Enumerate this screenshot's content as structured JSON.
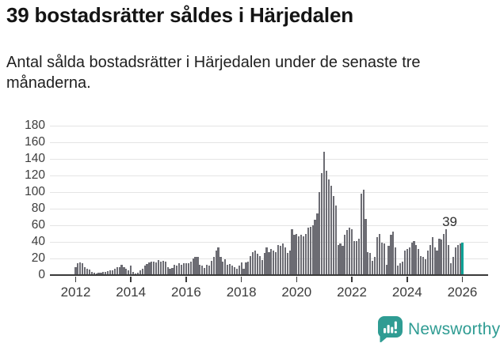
{
  "header": {
    "title": "39 bostadsrätter såldes i Härjedalen",
    "subtitle": "Antal sålda bostadsrätter i Härjedalen under de senaste tre månaderna."
  },
  "chart_data": {
    "type": "bar",
    "title": "39 bostadsrätter såldes i Härjedalen",
    "subtitle": "Antal sålda bostadsrätter i Härjedalen under de senaste tre månaderna.",
    "xlabel": "",
    "ylabel": "",
    "frequency": "monthly",
    "x_start": "2012-01",
    "x_end": "2026-01",
    "x_tick_labels": [
      "2012",
      "2014",
      "2016",
      "2018",
      "2020",
      "2022",
      "2024",
      "2026"
    ],
    "y_ticks": [
      0,
      20,
      40,
      60,
      80,
      100,
      120,
      140,
      160,
      180
    ],
    "ylim": [
      0,
      186
    ],
    "grid": true,
    "legend": "none",
    "bar_color": "#6c6c73",
    "highlight_color": "#0aa296",
    "series": [
      {
        "name": "Antal sålda bostadsrätter",
        "values": [
          10,
          14,
          15,
          14,
          10,
          8,
          7,
          4,
          3,
          2,
          3,
          3,
          4,
          4,
          5,
          6,
          6,
          8,
          10,
          10,
          12,
          10,
          8,
          6,
          11,
          4,
          2,
          3,
          6,
          8,
          11,
          13,
          15,
          16,
          16,
          15,
          18,
          16,
          17,
          16,
          10,
          8,
          9,
          12,
          11,
          14,
          12,
          14,
          14,
          14,
          16,
          20,
          22,
          22,
          12,
          11,
          9,
          12,
          11,
          17,
          22,
          30,
          33,
          22,
          16,
          19,
          12,
          13,
          11,
          10,
          8,
          11,
          15,
          8,
          15,
          16,
          23,
          28,
          30,
          26,
          23,
          18,
          27,
          33,
          28,
          31,
          30,
          28,
          36,
          35,
          38,
          33,
          27,
          30,
          55,
          49,
          50,
          47,
          49,
          47,
          50,
          57,
          58,
          60,
          67,
          74,
          100,
          123,
          149,
          126,
          115,
          108,
          95,
          84,
          36,
          38,
          35,
          49,
          54,
          57,
          55,
          41,
          41,
          44,
          98,
          103,
          68,
          28,
          27,
          17,
          22,
          46,
          50,
          39,
          38,
          12,
          35,
          49,
          52,
          33,
          11,
          14,
          16,
          30,
          31,
          33,
          39,
          41,
          36,
          31,
          23,
          22,
          19,
          30,
          36,
          46,
          33,
          30,
          44,
          43,
          50,
          55,
          36,
          14,
          22,
          33,
          36,
          38,
          39
        ]
      }
    ],
    "highlight_index": 168,
    "annotation": {
      "text": "39",
      "value": 39
    }
  },
  "footer": {
    "brand": "Newsworthy",
    "logo_icon": "newsworthy-bar-chart-bubble-icon",
    "brand_color": "#2f9c93"
  }
}
